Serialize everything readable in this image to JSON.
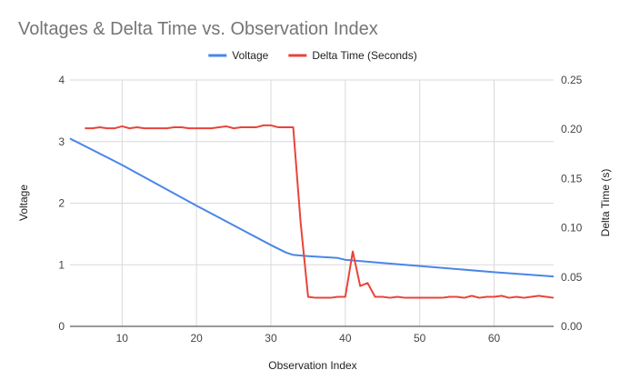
{
  "chart_data": {
    "type": "line",
    "title": "Voltages & Delta Time vs. Observation Index",
    "xlabel": "Observation Index",
    "ylabel": "Voltage",
    "y2label": "Delta Time (s)",
    "xlim": [
      3,
      68
    ],
    "ylim": [
      0,
      4
    ],
    "y2lim": [
      0,
      0.25
    ],
    "x_ticks": [
      10,
      20,
      30,
      40,
      50,
      60
    ],
    "y_ticks": [
      0,
      1,
      2,
      3,
      4
    ],
    "y2_ticks": [
      "0.00",
      "0.05",
      "0.10",
      "0.15",
      "0.20",
      "0.25"
    ],
    "grid": true,
    "legend_position": "top",
    "series": [
      {
        "name": "Voltage",
        "axis": "left",
        "color": "#4a86e8",
        "points": [
          [
            3,
            3.05
          ],
          [
            10,
            2.62
          ],
          [
            20,
            1.96
          ],
          [
            30,
            1.32
          ],
          [
            32,
            1.2
          ],
          [
            33,
            1.16
          ],
          [
            35,
            1.14
          ],
          [
            39,
            1.11
          ],
          [
            40,
            1.08
          ],
          [
            45,
            1.03
          ],
          [
            50,
            0.98
          ],
          [
            55,
            0.93
          ],
          [
            60,
            0.88
          ],
          [
            68,
            0.81
          ]
        ]
      },
      {
        "name": "Delta Time (Seconds)",
        "axis": "right",
        "color": "#e8443a",
        "points": [
          [
            5,
            0.201
          ],
          [
            6,
            0.201
          ],
          [
            7,
            0.202
          ],
          [
            8,
            0.201
          ],
          [
            9,
            0.201
          ],
          [
            10,
            0.203
          ],
          [
            11,
            0.201
          ],
          [
            12,
            0.202
          ],
          [
            13,
            0.201
          ],
          [
            14,
            0.201
          ],
          [
            15,
            0.201
          ],
          [
            16,
            0.201
          ],
          [
            17,
            0.202
          ],
          [
            18,
            0.202
          ],
          [
            19,
            0.201
          ],
          [
            20,
            0.201
          ],
          [
            21,
            0.201
          ],
          [
            22,
            0.201
          ],
          [
            23,
            0.202
          ],
          [
            24,
            0.203
          ],
          [
            25,
            0.201
          ],
          [
            26,
            0.202
          ],
          [
            27,
            0.202
          ],
          [
            28,
            0.202
          ],
          [
            29,
            0.204
          ],
          [
            30,
            0.204
          ],
          [
            31,
            0.202
          ],
          [
            32,
            0.202
          ],
          [
            33,
            0.202
          ],
          [
            34,
            0.105
          ],
          [
            35,
            0.03
          ],
          [
            36,
            0.029
          ],
          [
            37,
            0.029
          ],
          [
            38,
            0.029
          ],
          [
            39,
            0.03
          ],
          [
            40,
            0.03
          ],
          [
            41,
            0.076
          ],
          [
            42,
            0.041
          ],
          [
            43,
            0.044
          ],
          [
            44,
            0.03
          ],
          [
            45,
            0.03
          ],
          [
            46,
            0.029
          ],
          [
            47,
            0.03
          ],
          [
            48,
            0.029
          ],
          [
            49,
            0.029
          ],
          [
            50,
            0.029
          ],
          [
            51,
            0.029
          ],
          [
            52,
            0.029
          ],
          [
            53,
            0.029
          ],
          [
            54,
            0.03
          ],
          [
            55,
            0.03
          ],
          [
            56,
            0.029
          ],
          [
            57,
            0.031
          ],
          [
            58,
            0.029
          ],
          [
            59,
            0.03
          ],
          [
            60,
            0.03
          ],
          [
            61,
            0.031
          ],
          [
            62,
            0.029
          ],
          [
            63,
            0.03
          ],
          [
            64,
            0.029
          ],
          [
            65,
            0.03
          ],
          [
            66,
            0.031
          ],
          [
            67,
            0.03
          ],
          [
            68,
            0.029
          ]
        ]
      }
    ]
  }
}
